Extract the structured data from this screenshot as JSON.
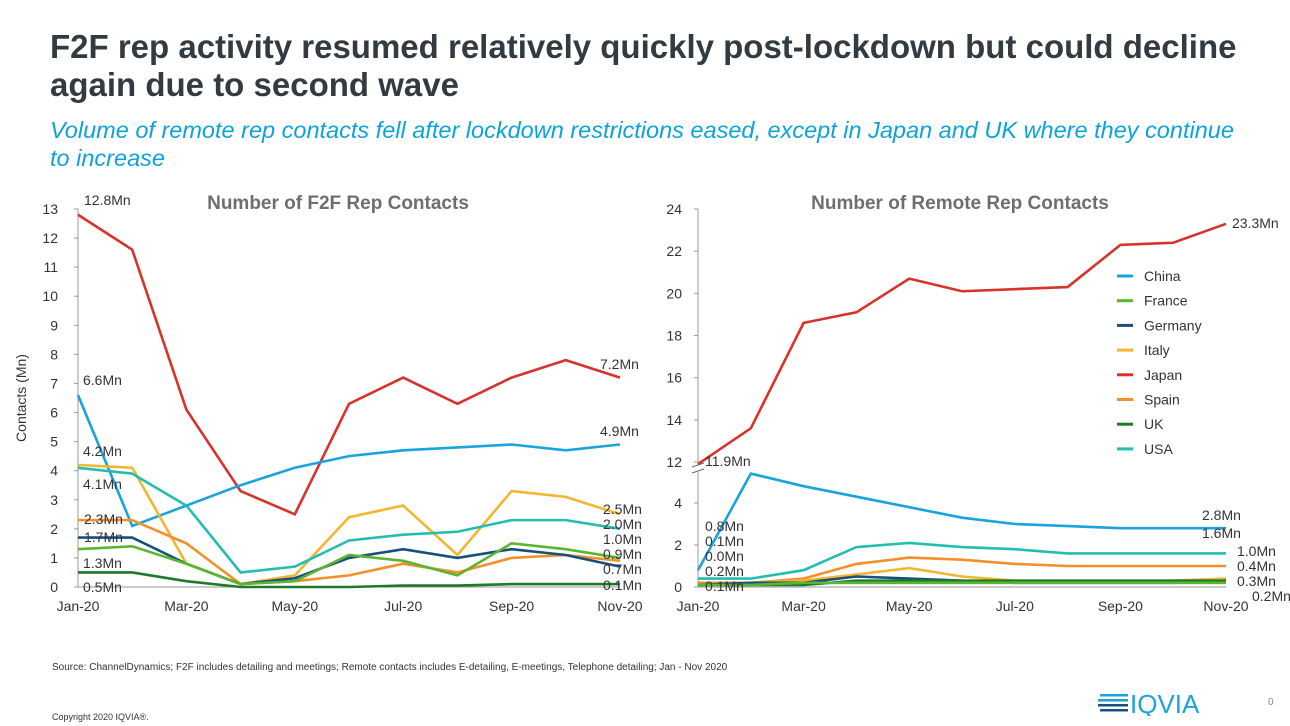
{
  "title": "F2F rep activity resumed relatively quickly post-lockdown but could decline again due to second wave",
  "subtitle": "Volume of remote rep contacts fell after lockdown restrictions eased, except in Japan and UK where they continue to increase",
  "source": "Source: ChannelDynamics; F2F includes detailing and meetings; Remote contacts includes E-detailing, E-meetings, Telephone detailing; Jan - Nov 2020",
  "copyright": "Copyright 2020 IQVIA®.",
  "page_number": "0",
  "logo_text": "IQVIA",
  "colors": {
    "China": "#1aa3dc",
    "France": "#5cb531",
    "Germany": "#15507f",
    "Italy": "#f2b632",
    "Japan": "#d7332a",
    "Spain": "#f58f2a",
    "UK": "#1d7a2a",
    "USA": "#23bdb1"
  },
  "chart_data": [
    {
      "type": "line",
      "title": "Number of F2F Rep Contacts",
      "ylabel": "Contacts (Mn)",
      "xlabel": "",
      "ylim": [
        0,
        13
      ],
      "yticks": [
        "0",
        "1",
        "2",
        "3",
        "4",
        "5",
        "6",
        "7",
        "8",
        "9",
        "10",
        "11",
        "12",
        "13"
      ],
      "x": [
        "Jan-20",
        "Feb-20",
        "Mar-20",
        "Apr-20",
        "May-20",
        "Jun-20",
        "Jul-20",
        "Aug-20",
        "Sep-20",
        "Oct-20",
        "Nov-20"
      ],
      "xtick_labels": [
        "Jan-20",
        "Mar-20",
        "May-20",
        "Jul-20",
        "Sep-20",
        "Nov-20"
      ],
      "series": [
        {
          "name": "Japan",
          "values": [
            12.8,
            11.6,
            6.1,
            3.3,
            2.5,
            6.3,
            7.2,
            6.3,
            7.2,
            7.8,
            7.2
          ]
        },
        {
          "name": "China",
          "values": [
            6.6,
            2.1,
            2.8,
            3.5,
            4.1,
            4.5,
            4.7,
            4.8,
            4.9,
            4.7,
            4.9
          ]
        },
        {
          "name": "Italy",
          "values": [
            4.2,
            4.1,
            0.8,
            0.1,
            0.4,
            2.4,
            2.8,
            1.1,
            3.3,
            3.1,
            2.5
          ]
        },
        {
          "name": "USA",
          "values": [
            4.1,
            3.9,
            2.8,
            0.5,
            0.7,
            1.6,
            1.8,
            1.9,
            2.3,
            2.3,
            2.0
          ]
        },
        {
          "name": "Spain",
          "values": [
            2.3,
            2.3,
            1.5,
            0.1,
            0.2,
            0.4,
            0.8,
            0.5,
            1.0,
            1.1,
            0.9
          ]
        },
        {
          "name": "Germany",
          "values": [
            1.7,
            1.7,
            0.8,
            0.1,
            0.3,
            1.0,
            1.3,
            1.0,
            1.3,
            1.1,
            0.7
          ]
        },
        {
          "name": "France",
          "values": [
            1.3,
            1.4,
            0.8,
            0.1,
            0.2,
            1.1,
            0.9,
            0.4,
            1.5,
            1.3,
            1.0
          ]
        },
        {
          "name": "UK",
          "values": [
            0.5,
            0.5,
            0.2,
            0.0,
            0.0,
            0.0,
            0.05,
            0.05,
            0.1,
            0.1,
            0.1
          ]
        }
      ],
      "data_labels": [
        "12.8Mn",
        "6.6Mn",
        "4.2Mn",
        "4.1Mn",
        "2.3Mn",
        "1.7Mn",
        "1.3Mn",
        "0.5Mn",
        "7.2Mn",
        "4.9Mn",
        "2.5Mn",
        "2.0Mn",
        "1.0Mn",
        "0.9Mn",
        "0.7Mn",
        "0.1Mn"
      ]
    },
    {
      "type": "line",
      "title": "Number of Remote Rep Contacts",
      "ylabel": "",
      "xlabel": "",
      "ylim": [
        0,
        24
      ],
      "axis_break": [
        5.5,
        12
      ],
      "yticks": [
        "0",
        "2",
        "4",
        "12",
        "14",
        "16",
        "18",
        "20",
        "22",
        "24"
      ],
      "x": [
        "Jan-20",
        "Feb-20",
        "Mar-20",
        "Apr-20",
        "May-20",
        "Jun-20",
        "Jul-20",
        "Aug-20",
        "Sep-20",
        "Oct-20",
        "Nov-20"
      ],
      "xtick_labels": [
        "Jan-20",
        "Mar-20",
        "May-20",
        "Jul-20",
        "Sep-20",
        "Nov-20"
      ],
      "legend": [
        "China",
        "France",
        "Germany",
        "Italy",
        "Japan",
        "Spain",
        "UK",
        "USA"
      ],
      "legend_position": "right",
      "series": [
        {
          "name": "Japan",
          "values": [
            11.9,
            13.6,
            18.6,
            19.1,
            20.7,
            20.1,
            20.2,
            20.3,
            22.3,
            22.4,
            23.3
          ]
        },
        {
          "name": "China",
          "values": [
            0.8,
            5.4,
            4.8,
            4.3,
            3.8,
            3.3,
            3.0,
            2.9,
            2.8,
            2.8,
            2.8
          ]
        },
        {
          "name": "USA",
          "values": [
            0.4,
            0.4,
            0.8,
            1.9,
            2.1,
            1.9,
            1.8,
            1.6,
            1.6,
            1.6,
            1.6
          ]
        },
        {
          "name": "Spain",
          "values": [
            0.2,
            0.2,
            0.4,
            1.1,
            1.4,
            1.3,
            1.1,
            1.0,
            1.0,
            1.0,
            1.0
          ]
        },
        {
          "name": "Italy",
          "values": [
            0.1,
            0.2,
            0.3,
            0.6,
            0.9,
            0.5,
            0.3,
            0.3,
            0.3,
            0.3,
            0.4
          ]
        },
        {
          "name": "Germany",
          "values": [
            0.1,
            0.2,
            0.2,
            0.5,
            0.4,
            0.3,
            0.2,
            0.2,
            0.2,
            0.2,
            0.3
          ]
        },
        {
          "name": "UK",
          "values": [
            0.1,
            0.1,
            0.1,
            0.3,
            0.3,
            0.3,
            0.3,
            0.3,
            0.3,
            0.3,
            0.3
          ]
        },
        {
          "name": "France",
          "values": [
            0.1,
            0.1,
            0.2,
            0.2,
            0.2,
            0.2,
            0.2,
            0.2,
            0.2,
            0.2,
            0.2
          ]
        }
      ],
      "data_labels": [
        "11.9Mn",
        "0.8Mn",
        "0.1Mn",
        "0.0Mn",
        "0.2Mn",
        "0.1Mn",
        "23.3Mn",
        "2.8Mn",
        "1.6Mn",
        "1.0Mn",
        "0.4Mn",
        "0.3Mn",
        "0.2Mn"
      ]
    }
  ]
}
